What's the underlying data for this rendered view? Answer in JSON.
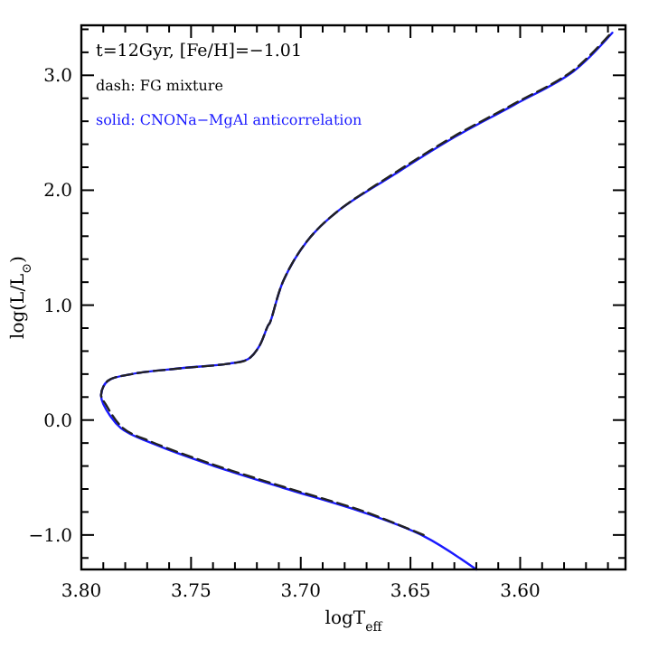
{
  "chart_data": {
    "type": "line",
    "xlabel": "logT$_{eff}$",
    "ylabel": "log(L/L$_{⊙}$)",
    "annotations": [
      "t=12Gyr, [Fe/H]=−1.01",
      "dash: FG mixture",
      "solid: CNONa−MgAl anticorrelation"
    ],
    "xlim": [
      3.8,
      3.552
    ],
    "ylim": [
      -1.3,
      3.435
    ],
    "xticks": [
      {
        "value": 3.8,
        "label": "3.80"
      },
      {
        "value": 3.79,
        "label": null
      },
      {
        "value": 3.78,
        "label": null
      },
      {
        "value": 3.77,
        "label": null
      },
      {
        "value": 3.76,
        "label": null
      },
      {
        "value": 3.75,
        "label": "3.75"
      },
      {
        "value": 3.74,
        "label": null
      },
      {
        "value": 3.73,
        "label": null
      },
      {
        "value": 3.72,
        "label": null
      },
      {
        "value": 3.71,
        "label": null
      },
      {
        "value": 3.7,
        "label": "3.70"
      },
      {
        "value": 3.69,
        "label": null
      },
      {
        "value": 3.68,
        "label": null
      },
      {
        "value": 3.67,
        "label": null
      },
      {
        "value": 3.66,
        "label": null
      },
      {
        "value": 3.65,
        "label": "3.65"
      },
      {
        "value": 3.64,
        "label": null
      },
      {
        "value": 3.63,
        "label": null
      },
      {
        "value": 3.62,
        "label": null
      },
      {
        "value": 3.61,
        "label": null
      },
      {
        "value": 3.6,
        "label": "3.60"
      },
      {
        "value": 3.59,
        "label": null
      },
      {
        "value": 3.58,
        "label": null
      },
      {
        "value": 3.57,
        "label": null
      },
      {
        "value": 3.56,
        "label": null
      }
    ],
    "yticks": [
      {
        "value": -1.2,
        "label": null
      },
      {
        "value": -1.0,
        "label": "−1.0"
      },
      {
        "value": -0.8,
        "label": null
      },
      {
        "value": -0.6,
        "label": null
      },
      {
        "value": -0.4,
        "label": null
      },
      {
        "value": -0.2,
        "label": null
      },
      {
        "value": 0,
        "label": "0.0"
      },
      {
        "value": 0.2,
        "label": null
      },
      {
        "value": 0.4,
        "label": null
      },
      {
        "value": 0.6,
        "label": null
      },
      {
        "value": 0.8,
        "label": null
      },
      {
        "value": 1.0,
        "label": "1.0"
      },
      {
        "value": 1.2,
        "label": null
      },
      {
        "value": 1.4,
        "label": null
      },
      {
        "value": 1.6,
        "label": null
      },
      {
        "value": 1.8,
        "label": null
      },
      {
        "value": 2.0,
        "label": "2.0"
      },
      {
        "value": 2.2,
        "label": null
      },
      {
        "value": 2.4,
        "label": null
      },
      {
        "value": 2.6,
        "label": null
      },
      {
        "value": 2.8,
        "label": null
      },
      {
        "value": 3.0,
        "label": "3.0"
      },
      {
        "value": 3.2,
        "label": null
      },
      {
        "value": 3.4,
        "label": null
      }
    ],
    "grid": false,
    "series": [
      {
        "color": "#1a1aff",
        "line_style": "solid",
        "x": [
          3.62,
          3.644,
          3.672,
          3.708,
          3.741,
          3.768,
          3.782,
          3.79,
          3.791,
          3.788,
          3.777,
          3.755,
          3.733,
          3.724,
          3.719,
          3.715,
          3.714,
          3.708,
          3.697,
          3.683,
          3.658,
          3.631,
          3.603,
          3.576,
          3.558
        ],
        "values": [
          -1.3,
          -1.01,
          -0.8,
          -0.59,
          -0.39,
          -0.2,
          -0.07,
          0.14,
          0.22,
          0.34,
          0.4,
          0.45,
          0.49,
          0.53,
          0.64,
          0.82,
          0.85,
          1.21,
          1.56,
          1.82,
          2.13,
          2.45,
          2.74,
          3.03,
          3.37
        ]
      },
      {
        "color": "#222222",
        "line_style": "dashed",
        "x": [
          3.644,
          3.672,
          3.708,
          3.741,
          3.768,
          3.781,
          3.789,
          3.791,
          3.788,
          3.777,
          3.755,
          3.733,
          3.724,
          3.719,
          3.715,
          3.714,
          3.708,
          3.697,
          3.683,
          3.658,
          3.631,
          3.603,
          3.576,
          3.558
        ],
        "values": [
          -1.0,
          -0.79,
          -0.58,
          -0.38,
          -0.19,
          -0.07,
          0.14,
          0.22,
          0.34,
          0.4,
          0.45,
          0.49,
          0.53,
          0.64,
          0.82,
          0.85,
          1.21,
          1.56,
          1.82,
          2.14,
          2.46,
          2.75,
          3.04,
          3.38
        ]
      }
    ]
  }
}
